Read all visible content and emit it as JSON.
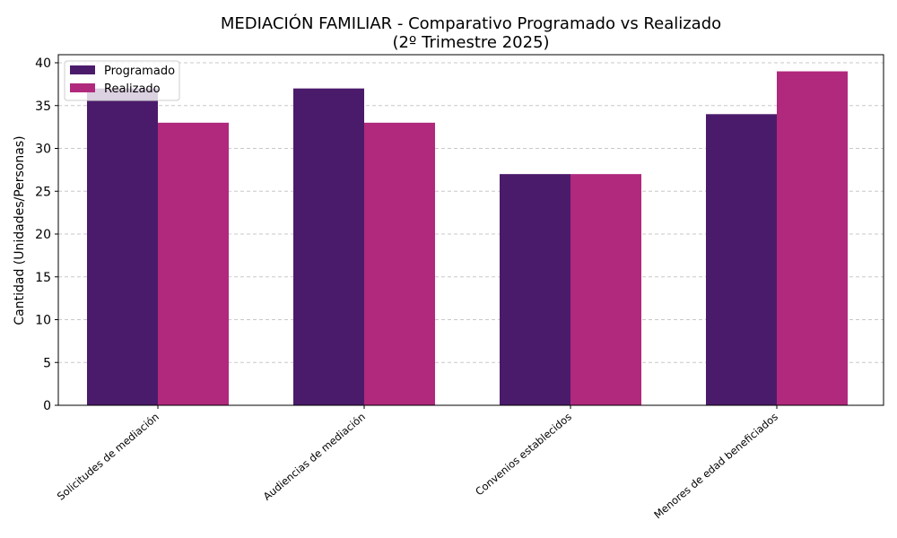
{
  "chart_data": {
    "type": "bar",
    "title": "MEDIACIÓN FAMILIAR - Comparativo Programado vs Realizado",
    "subtitle": "(2º Trimestre 2025)",
    "xlabel": "",
    "ylabel": "Cantidad (Unidades/Personas)",
    "ylim": [
      0,
      40
    ],
    "yticks": [
      0,
      5,
      10,
      15,
      20,
      25,
      30,
      35,
      40
    ],
    "grid": true,
    "legend_position": "top-left",
    "categories": [
      "Solicitudes de mediación",
      "Audiencias de mediación",
      "Convenios establecidos",
      "Menores de edad beneficiados"
    ],
    "series": [
      {
        "name": "Programado",
        "values": [
          37,
          37,
          27,
          34
        ],
        "color": "#4b1b6b"
      },
      {
        "name": "Realizado",
        "values": [
          33,
          33,
          27,
          39
        ],
        "color": "#b0297c"
      }
    ]
  }
}
